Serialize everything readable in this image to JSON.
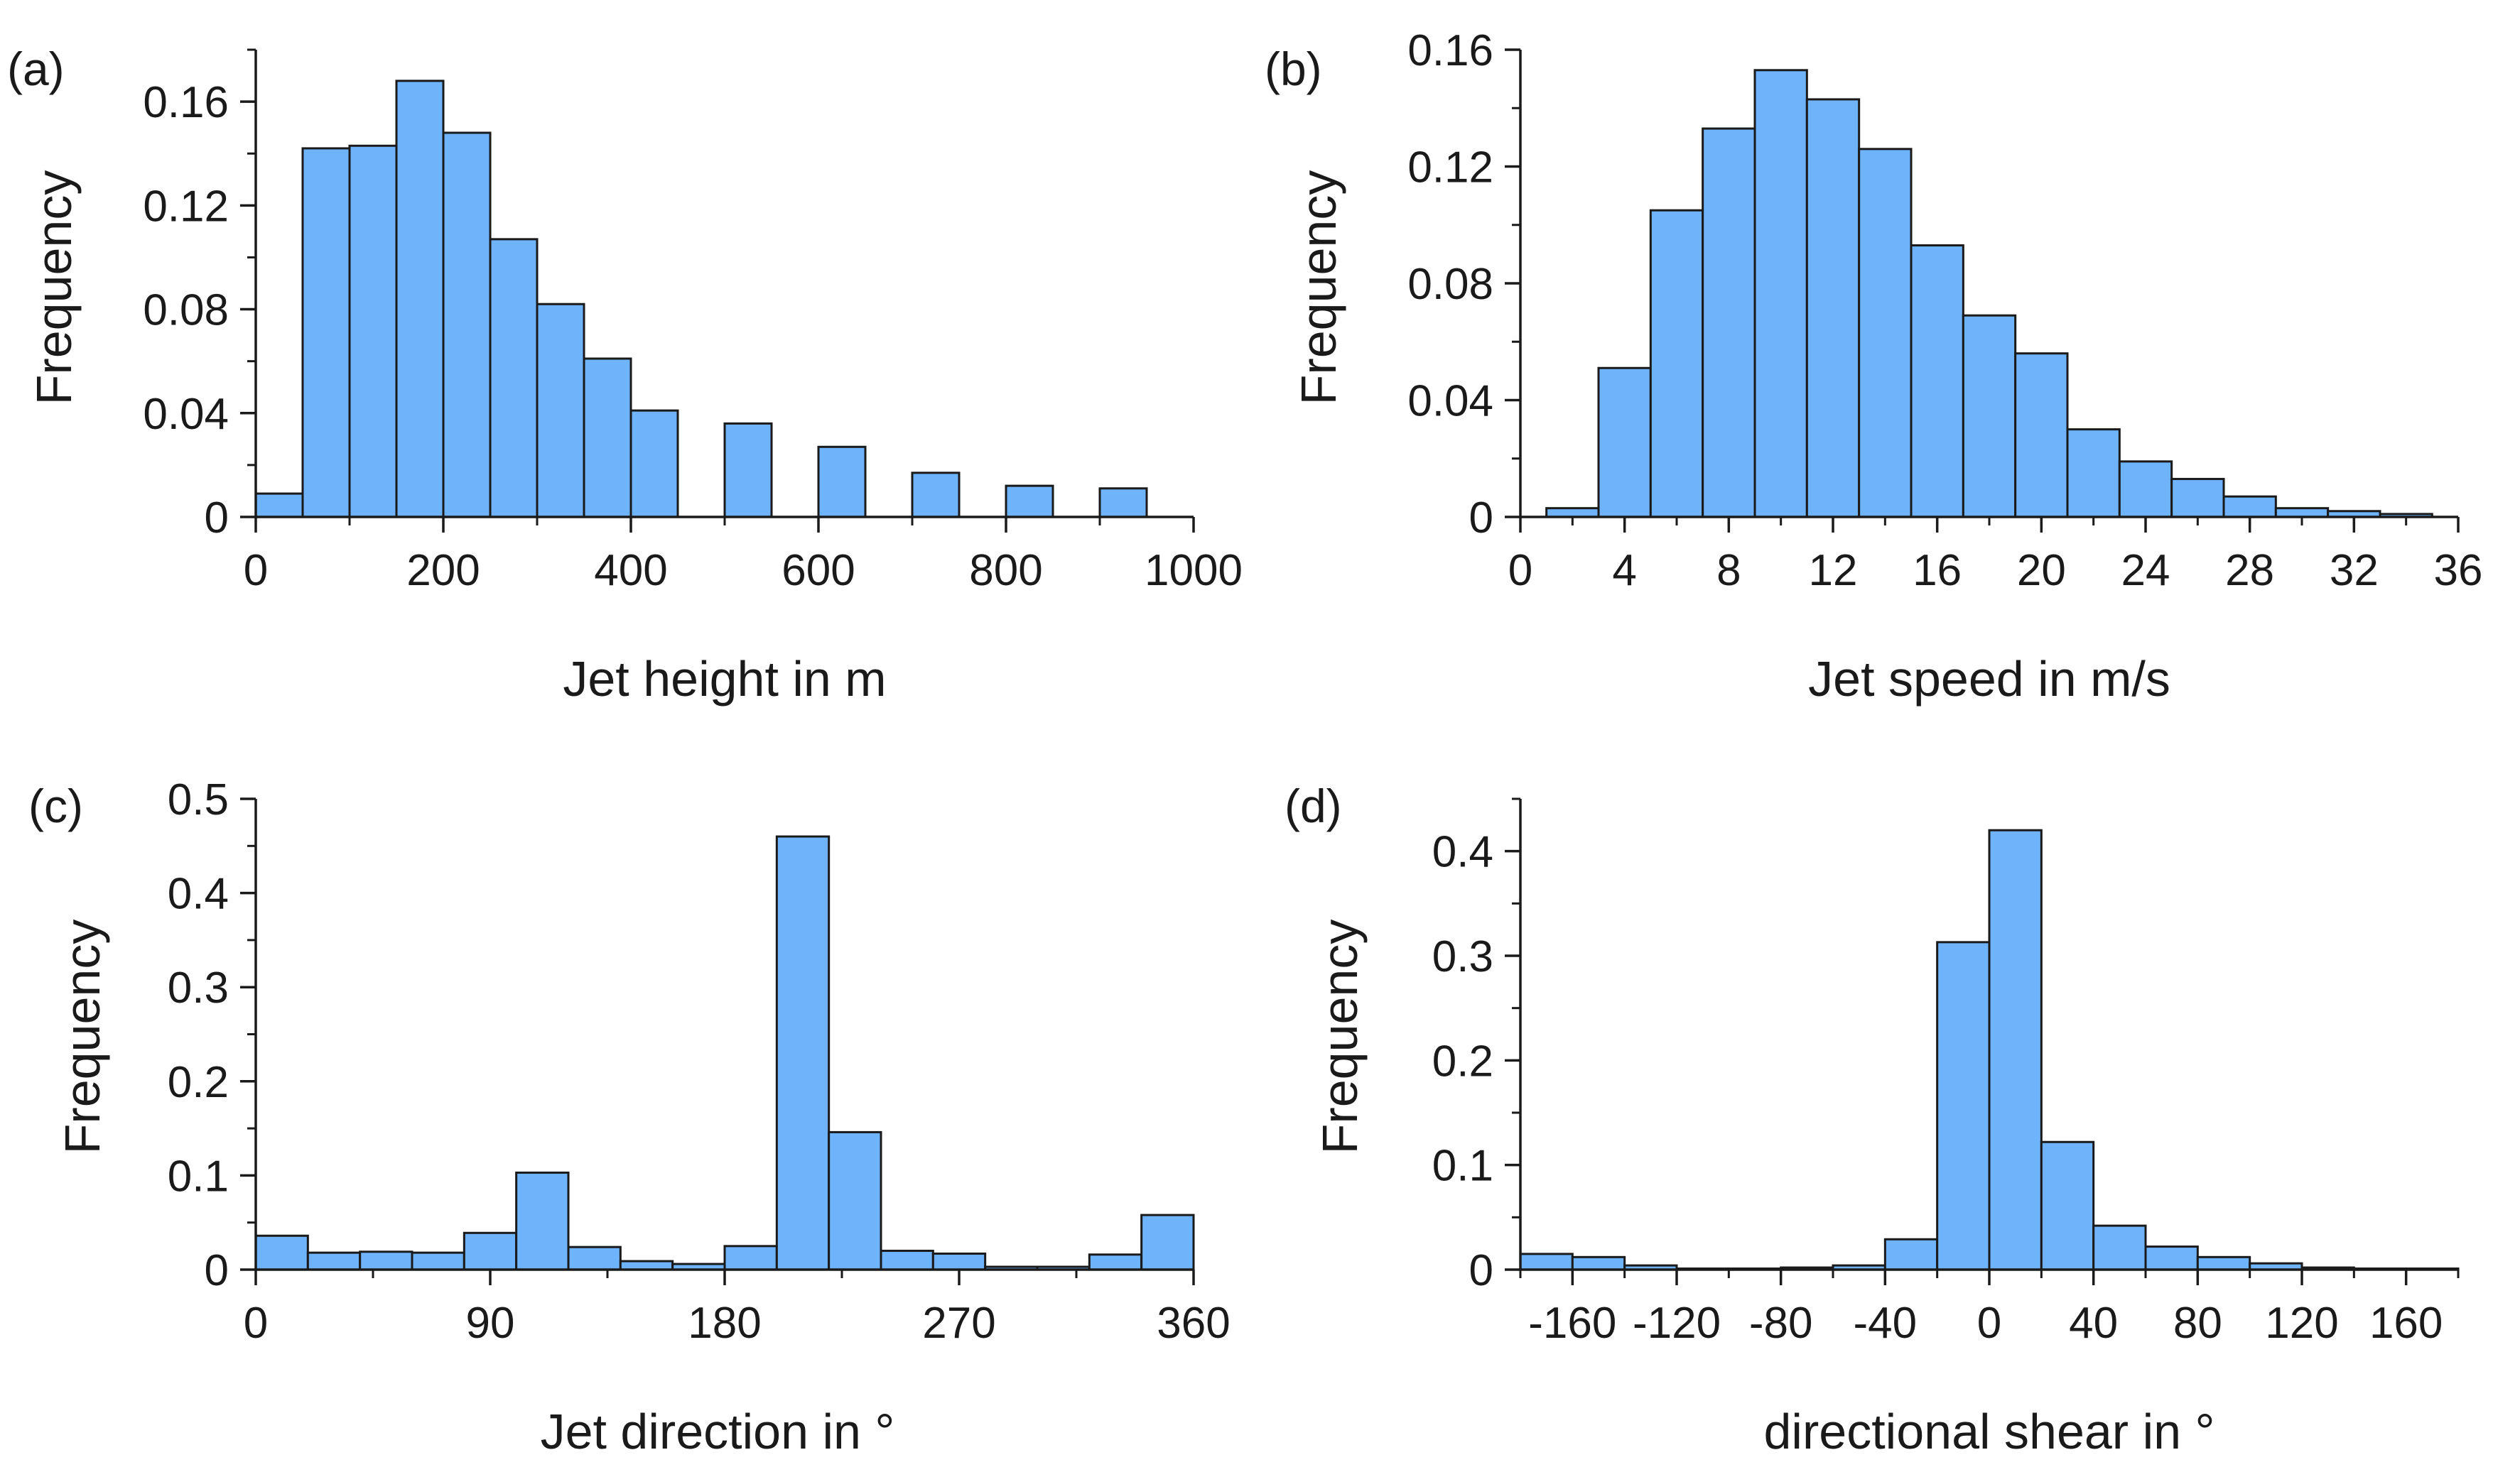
{
  "colors": {
    "bar_fill": "#6FB3FA",
    "bar_stroke": "#1a1a1a",
    "axis": "#1a1a1a"
  },
  "chart_data": [
    {
      "id": "a",
      "panel_label": "(a)",
      "type": "bar",
      "xlabel": "Jet height in m",
      "ylabel": "Frequency",
      "xlim": [
        0,
        1000
      ],
      "ylim": [
        0,
        0.18
      ],
      "xticks": [
        0,
        200,
        400,
        600,
        800,
        1000
      ],
      "xtick_labels": [
        "0",
        "200",
        "400",
        "600",
        "800",
        "1000"
      ],
      "xminor_step": 100,
      "yticks": [
        0,
        0.04,
        0.08,
        0.12,
        0.16
      ],
      "ytick_labels": [
        "0",
        "0.04",
        "0.08",
        "0.12",
        "0.16"
      ],
      "yminor_step": 0.02,
      "bin_edges": [
        0,
        50,
        100,
        150,
        200,
        250,
        300,
        350,
        400,
        450,
        500,
        550,
        600,
        650,
        700,
        750,
        800,
        850,
        900,
        950
      ],
      "values": [
        0.009,
        0.142,
        0.143,
        0.168,
        0.148,
        0.107,
        0.082,
        0.061,
        0.041,
        0,
        0.036,
        0,
        0.027,
        0,
        0.017,
        0,
        0.012,
        0,
        0.011
      ]
    },
    {
      "id": "b",
      "panel_label": "(b)",
      "type": "bar",
      "xlabel": "Jet speed in m/s",
      "ylabel": "Frequency",
      "xlim": [
        0,
        36
      ],
      "ylim": [
        0,
        0.16
      ],
      "xticks": [
        0,
        4,
        8,
        12,
        16,
        20,
        24,
        28,
        32,
        36
      ],
      "xtick_labels": [
        "0",
        "4",
        "8",
        "12",
        "16",
        "20",
        "24",
        "28",
        "32",
        "36"
      ],
      "xminor_step": 2,
      "yticks": [
        0,
        0.04,
        0.08,
        0.12,
        0.16
      ],
      "ytick_labels": [
        "0",
        "0.04",
        "0.08",
        "0.12",
        "0.16"
      ],
      "yminor_step": 0.02,
      "bin_edges": [
        1,
        3,
        5,
        7,
        9,
        11,
        13,
        15,
        17,
        19,
        21,
        23,
        25,
        27,
        29,
        31,
        33,
        35
      ],
      "values": [
        0.003,
        0.051,
        0.105,
        0.133,
        0.153,
        0.143,
        0.126,
        0.093,
        0.069,
        0.056,
        0.03,
        0.019,
        0.013,
        0.007,
        0.003,
        0.002,
        0.001
      ]
    },
    {
      "id": "c",
      "panel_label": "(c)",
      "type": "bar",
      "xlabel": "Jet direction in °",
      "ylabel": "Frequency",
      "xlim": [
        0,
        360
      ],
      "ylim": [
        0,
        0.5
      ],
      "xticks": [
        0,
        90,
        180,
        270,
        360
      ],
      "xtick_labels": [
        "0",
        "90",
        "180",
        "270",
        "360"
      ],
      "xminor_step": 45,
      "yticks": [
        0,
        0.1,
        0.2,
        0.3,
        0.4,
        0.5
      ],
      "ytick_labels": [
        "0",
        "0.1",
        "0.2",
        "0.3",
        "0.4",
        "0.5"
      ],
      "yminor_step": 0.05,
      "bin_edges": [
        0,
        20,
        40,
        60,
        80,
        100,
        120,
        140,
        160,
        180,
        200,
        220,
        240,
        260,
        280,
        300,
        320,
        340,
        360
      ],
      "values": [
        0.036,
        0.018,
        0.019,
        0.018,
        0.039,
        0.103,
        0.024,
        0.009,
        0.006,
        0.025,
        0.46,
        0.146,
        0.02,
        0.017,
        0.003,
        0.003,
        0.016,
        0.058
      ]
    },
    {
      "id": "d",
      "panel_label": "(d)",
      "type": "bar",
      "xlabel": "directional shear in °",
      "ylabel": "Frequency",
      "xlim": [
        -180,
        180
      ],
      "ylim": [
        0,
        0.45
      ],
      "xticks": [
        -160,
        -120,
        -80,
        -40,
        0,
        40,
        80,
        120,
        160
      ],
      "xtick_labels": [
        "-160",
        "-120",
        "-80",
        "-40",
        "0",
        "40",
        "80",
        "120",
        "160"
      ],
      "xminor_step": 20,
      "yticks": [
        0,
        0.1,
        0.2,
        0.3,
        0.4
      ],
      "ytick_labels": [
        "0",
        "0.1",
        "0.2",
        "0.3",
        "0.4"
      ],
      "yminor_step": 0.05,
      "bin_edges": [
        -180,
        -160,
        -140,
        -120,
        -100,
        -80,
        -60,
        -40,
        -20,
        0,
        20,
        40,
        60,
        80,
        100,
        120,
        140,
        160,
        180
      ],
      "values": [
        0.015,
        0.012,
        0.004,
        0.001,
        0.001,
        0.002,
        0.004,
        0.029,
        0.313,
        0.42,
        0.122,
        0.042,
        0.022,
        0.012,
        0.006,
        0.002,
        0.001,
        0.001
      ]
    }
  ]
}
